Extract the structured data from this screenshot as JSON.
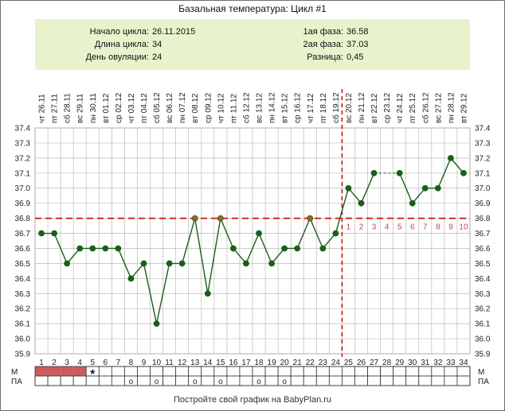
{
  "page": {
    "title": "Базальная температура: Цикл #1",
    "footer": "Постройте свой график на BabyPlan.ru"
  },
  "info": {
    "cycle_start_label": "Начало цикла:",
    "cycle_start_value": "26.11.2015",
    "cycle_length_label": "Длина цикла:",
    "cycle_length_value": "34",
    "ovulation_day_label": "День овуляции:",
    "ovulation_day_value": "24",
    "phase1_label": "1ая фаза:",
    "phase1_value": "36.58",
    "phase2_label": "2ая фаза:",
    "phase2_value": "37.03",
    "difference_label": "Разница:",
    "difference_value": "0,45"
  },
  "grid_rows": {
    "m_label": "М",
    "pa_label": "ПА",
    "m_filled_days": [
      1,
      2,
      3,
      4
    ],
    "m_star_day": 5,
    "m_star_symbol": "★",
    "pa_circle_days": [
      8,
      10,
      13,
      15,
      18,
      20
    ],
    "pa_circle_symbol": "o"
  },
  "colors": {
    "line": "#1a5e1a",
    "point": "#1a5e1a",
    "coverline": "#cc1010",
    "ovulation_line": "#cc1010",
    "m_fill": "#cd5c5c",
    "phase_num": "#b05050",
    "info_bg": "#e8f2cc",
    "grid": "#bbbbbb"
  },
  "chart_data": {
    "type": "line",
    "title": "Базальная температура: Цикл #1",
    "days": [
      1,
      2,
      3,
      4,
      5,
      6,
      7,
      8,
      9,
      10,
      11,
      12,
      13,
      14,
      15,
      16,
      17,
      18,
      19,
      20,
      21,
      22,
      23,
      24,
      25,
      26,
      27,
      28,
      29,
      30,
      31,
      32,
      33,
      34
    ],
    "dates": [
      "26.11",
      "27.11",
      "28.11",
      "29.11",
      "30.11",
      "01.12",
      "02.12",
      "03.12",
      "04.12",
      "05.12",
      "06.12",
      "07.12",
      "08.12",
      "09.12",
      "10.12",
      "11.12",
      "12.12",
      "13.12",
      "14.12",
      "15.12",
      "16.12",
      "17.12",
      "18.12",
      "19.12",
      "20.12",
      "21.12",
      "22.12",
      "23.12",
      "24.12",
      "25.12",
      "26.12",
      "27.12",
      "28.12",
      "29.12"
    ],
    "weekdays": [
      "чт",
      "пт",
      "сб",
      "вс",
      "пн",
      "вт",
      "ср",
      "чт",
      "пт",
      "сб",
      "вс",
      "пн",
      "вт",
      "ср",
      "чт",
      "пт",
      "сб",
      "вс",
      "пн",
      "вт",
      "ср",
      "чт",
      "пт",
      "сб",
      "вс",
      "пн",
      "вт",
      "ср",
      "чт",
      "пт",
      "сб",
      "вс",
      "пн",
      "вт"
    ],
    "temperatures": [
      36.7,
      36.7,
      36.5,
      36.6,
      36.6,
      36.6,
      36.6,
      36.4,
      36.5,
      36.1,
      36.5,
      36.5,
      36.8,
      36.3,
      36.8,
      36.6,
      36.5,
      36.7,
      36.5,
      36.6,
      36.6,
      36.8,
      36.6,
      36.7,
      37.0,
      36.9,
      37.1,
      null,
      37.1,
      36.9,
      37.0,
      37.0,
      37.2,
      37.1
    ],
    "gap_segments": [
      [
        27,
        29
      ]
    ],
    "highlighted_points": [
      13,
      15,
      22
    ],
    "ylim": [
      35.9,
      37.4
    ],
    "y_ticks": [
      35.9,
      36.0,
      36.1,
      36.2,
      36.3,
      36.4,
      36.5,
      36.6,
      36.7,
      36.8,
      36.9,
      37.0,
      37.1,
      37.2,
      37.3,
      37.4
    ],
    "coverline": 36.8,
    "ovulation_day": 24,
    "phase2_day_numbers": [
      "1",
      "2",
      "3",
      "4",
      "5",
      "6",
      "7",
      "8",
      "9",
      "10"
    ],
    "grid": true
  }
}
